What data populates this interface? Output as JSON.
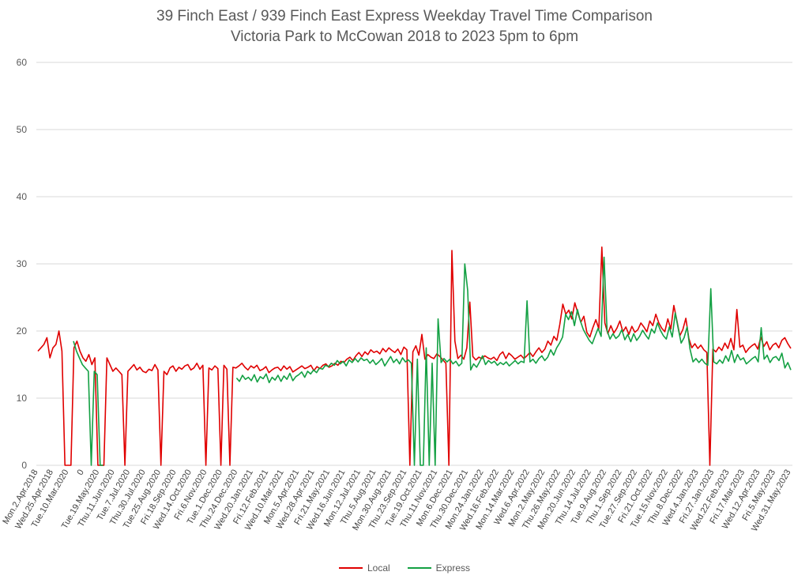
{
  "chart_data": {
    "type": "line",
    "title": "39 Finch East / 939 Finch East Express Weekday Travel Time Comparison",
    "subtitle": "Victoria Park to McCowan 2018 to 2023 5pm to 6pm",
    "xlabel": "",
    "ylabel": "",
    "ylim": [
      0,
      60
    ],
    "yticks": [
      0,
      10,
      20,
      30,
      40,
      50,
      60
    ],
    "grid": true,
    "legend_position": "bottom",
    "colors": {
      "local": "#e00000",
      "express": "#13a043",
      "grid": "#d9d9d9",
      "text": "#595959"
    },
    "x_tick_labels": [
      "Mon.2.Apr.2018",
      "Wed.25.Apr.2018",
      "Tue.10.Mar.2020",
      "0",
      "Tue.19.May.2020",
      "Thu.11.Jun.2020",
      "Tue.7.Jul.2020",
      "Thu.30.Jul.2020",
      "Tue.25.Aug.2020",
      "Fri.18.Sep.2020",
      "Wed.14.Oct.2020",
      "Fri.6.Nov.2020",
      "Tue.1.Dec.2020",
      "Thu.24.Dec.2020",
      "Wed.20.Jan.2021",
      "Fri.12.Feb.2021",
      "Wed.10.Mar.2021",
      "Mon.5.Apr.2021",
      "Wed.28.Apr.2021",
      "Fri.21.May.2021",
      "Wed.16.Jun.2021",
      "Mon.12.Jul.2021",
      "Thu.5.Aug.2021",
      "Mon.30.Aug.2021",
      "Thu.23.Sep.2021",
      "Tue.19.Oct.2021",
      "Thu.11.Nov.2021",
      "Mon.6.Dec.2021",
      "Thu.30.Dec.2021",
      "Mon.24.Jan.2022",
      "Wed.16.Feb.2022",
      "Mon.14.Mar.2022",
      "Wed.6.Apr.2022",
      "Mon.2.May.2022",
      "Thu.26.May.2022",
      "Mon.20.Jun.2022",
      "Thu.14.Jul.2022",
      "Tue.9.Aug.2022",
      "Thu.1.Sep.2022",
      "Tue.27.Sep.2022",
      "Fri.21.Oct.2022",
      "Tue.15.Nov.2022",
      "Thu.8.Dec.2022",
      "Wed.4.Jan.2023",
      "Fri.27.Jan.2023",
      "Wed.22.Feb.2023",
      "Fri.17.Mar.2023",
      "Wed.12.Apr.2023",
      "Fri.5.May.2023",
      "Wed.31.May.2023"
    ],
    "series": [
      {
        "name": "Local",
        "values": [
          17,
          17.5,
          18,
          19,
          16,
          17.5,
          18,
          20,
          17,
          0,
          0,
          0,
          17.5,
          18.5,
          17,
          16,
          15.5,
          16.5,
          15,
          16,
          0,
          0,
          0,
          16,
          15,
          14,
          14.5,
          14,
          13.5,
          0,
          14,
          14.5,
          15,
          14.2,
          14.6,
          14,
          13.8,
          14.3,
          14.1,
          15,
          14.2,
          0,
          14,
          13.5,
          14.5,
          14.8,
          14,
          14.6,
          14.3,
          14.8,
          15,
          14.2,
          14.5,
          15.2,
          14.3,
          14.9,
          0,
          14.5,
          14.2,
          14.8,
          14.4,
          0,
          14.9,
          14.3,
          0,
          14.6,
          14.5,
          14.8,
          15.2,
          14.6,
          14.2,
          14.8,
          14.5,
          14.9,
          14.1,
          14.3,
          14.7,
          13.8,
          14.2,
          14.5,
          14.6,
          14.1,
          14.8,
          14.3,
          14.7,
          13.9,
          14.2,
          14.5,
          14.8,
          14.4,
          14.6,
          14.9,
          14.1,
          14.7,
          14.4,
          14.9,
          15.1,
          14.6,
          14.8,
          15.2,
          14.9,
          15.5,
          15.3,
          15.8,
          16.1,
          15.6,
          16.3,
          16.8,
          16.2,
          16.9,
          16.5,
          17.2,
          16.8,
          17,
          16.6,
          17.4,
          16.9,
          17.5,
          17.1,
          16.8,
          17.3,
          16.5,
          17.6,
          17.2,
          0,
          16.9,
          17.8,
          16.4,
          19.5,
          15.8,
          16.5,
          16.1,
          15.9,
          16.6,
          16.2,
          15.7,
          15.2,
          0,
          32,
          18.5,
          15.9,
          16.4,
          15.8,
          17.5,
          24.3,
          16.2,
          15.7,
          16.1,
          15.9,
          16.3,
          16,
          15.8,
          16.1,
          15.6,
          16.5,
          16.9,
          15.9,
          16.7,
          16.3,
          15.8,
          16.1,
          16.4,
          15.9,
          16.3,
          16.8,
          16.2,
          16.9,
          17.5,
          16.8,
          17.3,
          18.5,
          17.9,
          19.2,
          18.6,
          21,
          24,
          22.5,
          23.1,
          21.8,
          24.2,
          22.7,
          21.3,
          22.2,
          19.8,
          19.1,
          20.5,
          21.7,
          20.3,
          32.5,
          21.2,
          19.6,
          20.8,
          19.7,
          20.4,
          21.5,
          19.9,
          20.6,
          19.5,
          20.7,
          19.8,
          20.2,
          21.2,
          20.6,
          19.9,
          21.5,
          20.8,
          22.5,
          21.2,
          20.4,
          19.9,
          21.8,
          20.3,
          23.8,
          21.6,
          19.3,
          20.2,
          21.9,
          18.9,
          17.5,
          18.1,
          17.4,
          17.9,
          17.2,
          16.8,
          0,
          17.3,
          16.9,
          17.6,
          17.1,
          18.2,
          17.4,
          18.9,
          17.2,
          23.2,
          17.6,
          17.9,
          16.8,
          17.4,
          17.8,
          18.1,
          17.3,
          19.1,
          17.7,
          18.4,
          17.2,
          17.9,
          18.2,
          17.5,
          18.6,
          19,
          18.1,
          17.4
        ]
      },
      {
        "name": "Express",
        "values": [
          null,
          null,
          null,
          null,
          null,
          null,
          null,
          null,
          null,
          null,
          null,
          null,
          18.5,
          17,
          16,
          15,
          14.5,
          14,
          0,
          14,
          13.5,
          0,
          0,
          null,
          null,
          null,
          null,
          null,
          null,
          null,
          null,
          null,
          null,
          null,
          null,
          null,
          null,
          null,
          null,
          null,
          null,
          null,
          null,
          null,
          null,
          null,
          null,
          null,
          null,
          null,
          null,
          null,
          null,
          null,
          null,
          null,
          null,
          null,
          null,
          null,
          null,
          null,
          null,
          null,
          null,
          null,
          null,
          13,
          12.5,
          13.4,
          12.8,
          13.1,
          12.6,
          13.5,
          12.4,
          13.2,
          12.9,
          13.6,
          12.3,
          13.1,
          12.7,
          13.4,
          12.5,
          13.3,
          12.8,
          13.7,
          12.6,
          13.2,
          13.5,
          13.9,
          13.1,
          14,
          13.6,
          14.2,
          13.8,
          14.5,
          14.3,
          14.9,
          14.7,
          15.2,
          14.9,
          15.6,
          15.1,
          15.5,
          14.8,
          15.7,
          15.3,
          15.9,
          15.4,
          16,
          15.6,
          15.8,
          15.2,
          15.7,
          15,
          15.4,
          15.9,
          14.8,
          15.5,
          16.2,
          15.3,
          15.8,
          15.1,
          16,
          15.4,
          15.7,
          15.2,
          0,
          15.8,
          0,
          0,
          17.5,
          0,
          15.2,
          0,
          21.8,
          15.3,
          15.9,
          15.4,
          15.8,
          15.1,
          15.5,
          14.8,
          15.2,
          30,
          26,
          14.2,
          15.1,
          14.6,
          15.4,
          16.3,
          15,
          15.6,
          15.2,
          15.5,
          14.9,
          15.3,
          15,
          15.4,
          14.8,
          15.2,
          15.6,
          15.1,
          15.5,
          15.3,
          24.5,
          15.4,
          15.8,
          15.2,
          15.9,
          16.3,
          15.6,
          16.1,
          17.2,
          16.4,
          17.5,
          18.2,
          19.1,
          22.5,
          21.7,
          22.9,
          20.8,
          23.2,
          21.5,
          20.2,
          19.4,
          18.6,
          18.1,
          19.3,
          20.4,
          19.2,
          31,
          20.1,
          18.8,
          19.6,
          18.9,
          19.3,
          20.2,
          18.7,
          19.5,
          18.4,
          19.6,
          18.6,
          19.2,
          20.1,
          19.4,
          18.8,
          20.3,
          19.7,
          21.2,
          20.1,
          19.3,
          18.8,
          20.6,
          19.1,
          22.7,
          20.4,
          18.2,
          19,
          20.6,
          17.3,
          15.4,
          15.9,
          15.3,
          15.8,
          15.2,
          14.9,
          26.3,
          15.4,
          15.1,
          15.7,
          15.2,
          16.3,
          15.5,
          17.1,
          15.3,
          16.5,
          15.7,
          16,
          15.1,
          15.5,
          15.9,
          16.2,
          15.4,
          20.5,
          15.8,
          16.4,
          15.3,
          16,
          16.2,
          15.6,
          16.7,
          14.5,
          15.3,
          14.2
        ]
      }
    ]
  }
}
